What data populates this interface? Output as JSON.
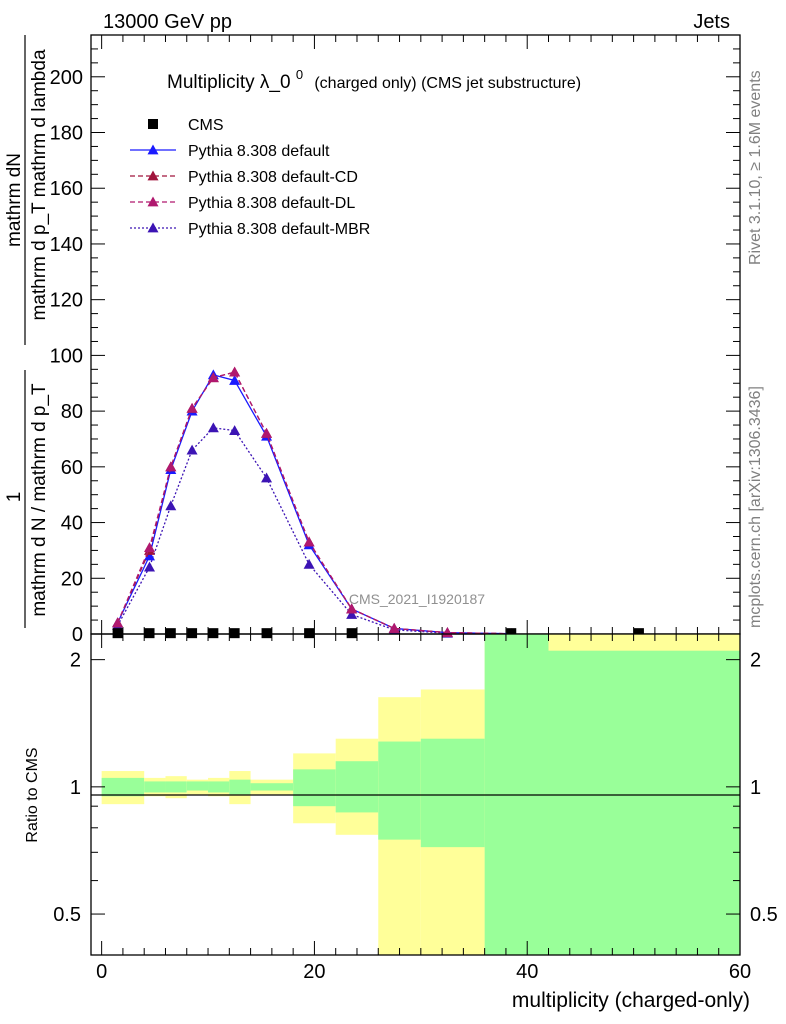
{
  "header": {
    "energy_label": "13000 GeV pp",
    "process_label": "Jets",
    "rivet_label": "Rivet 3.1.10, ≥ 1.6M events",
    "site_label": "mcplots.cern.ch [arXiv:1306.3436]",
    "analysis_id": "CMS_2021_I1920187"
  },
  "chart_data": [
    {
      "type": "line",
      "title": "Multiplicity λ_0",
      "title_superscript": "0",
      "title_suffix": "(charged only) (CMS jet substructure)",
      "ylabel_numerator": "1",
      "ylabel_numerator_2": "mathrm dN",
      "ylabel_denominator": "mathrm d N / mathrm d p_T",
      "ylabel_denominator_2": "mathrm d p_T mathrm d lambda",
      "ylim": [
        0,
        215
      ],
      "xlim": [
        -1,
        60
      ],
      "yticks": [
        "0",
        "20",
        "40",
        "60",
        "80",
        "100",
        "120",
        "140",
        "160",
        "180",
        "200"
      ],
      "legend_position": "top-left",
      "series": [
        {
          "name": "CMS",
          "marker": "square",
          "color": "#000000",
          "x": [
            1.5,
            4.5,
            6.5,
            8.5,
            10.5,
            12.5,
            15.5,
            19.5,
            23.5,
            38.5,
            50.5
          ],
          "values": [
            0.3,
            0.3,
            0.3,
            0.3,
            0.3,
            0.3,
            0.3,
            0.3,
            0.3,
            0.3,
            0.3
          ]
        },
        {
          "name": "Pythia 8.308 default",
          "marker": "triangle",
          "line": "solid",
          "color": "#1a1aff",
          "x": [
            1.5,
            4.5,
            6.5,
            8.5,
            10.5,
            12.5,
            15.5,
            19.5,
            23.5,
            27.5,
            32.5,
            38.5
          ],
          "values": [
            4,
            28,
            59,
            80,
            93,
            91,
            71,
            32,
            9,
            2,
            0.5,
            0.1
          ]
        },
        {
          "name": "Pythia 8.308 default-CD",
          "marker": "triangle",
          "line": "dashed",
          "color": "#a0143c",
          "x": [
            1.5,
            4.5,
            6.5,
            8.5,
            10.5,
            12.5,
            15.5,
            19.5,
            23.5,
            27.5,
            32.5,
            38.5
          ],
          "values": [
            4,
            30,
            60,
            81,
            92,
            94,
            72,
            33,
            9,
            2,
            0.5,
            0.1
          ]
        },
        {
          "name": "Pythia 8.308 default-DL",
          "marker": "triangle",
          "line": "dashed",
          "color": "#b0186e",
          "x": [
            1.5,
            4.5,
            6.5,
            8.5,
            10.5,
            12.5,
            15.5,
            19.5,
            23.5,
            27.5,
            32.5,
            38.5
          ],
          "values": [
            4,
            31,
            60,
            81,
            92,
            94,
            72,
            33,
            9,
            2,
            0.5,
            0.1
          ]
        },
        {
          "name": "Pythia 8.308 default-MBR",
          "marker": "triangle",
          "line": "dotted",
          "color": "#3c14b4",
          "x": [
            1.5,
            4.5,
            6.5,
            8.5,
            10.5,
            12.5,
            15.5,
            19.5,
            23.5,
            27.5,
            32.5,
            38.5
          ],
          "values": [
            3,
            24,
            46,
            66,
            74,
            73,
            56,
            25,
            7,
            1.5,
            0.3,
            0.05
          ]
        }
      ]
    },
    {
      "type": "area",
      "ylabel": "Ratio to CMS",
      "xlabel": "multiplicity (charged-only)",
      "log_y": true,
      "ylim": [
        0.4,
        2.3
      ],
      "xlim": [
        -1,
        60
      ],
      "xticks": [
        "0",
        "20",
        "40",
        "60"
      ],
      "yticks": [
        "0.5",
        "1",
        "2"
      ],
      "reference_line": 1,
      "bands": {
        "stat_color": "#99ff99",
        "total_color": "#ffff99",
        "bins": [
          {
            "x0": 0,
            "x1": 4,
            "stat": [
              0.95,
              1.05
            ],
            "total": [
              0.91,
              1.09
            ]
          },
          {
            "x0": 4,
            "x1": 6,
            "stat": [
              0.97,
              1.03
            ],
            "total": [
              0.95,
              1.05
            ]
          },
          {
            "x0": 6,
            "x1": 8,
            "stat": [
              0.97,
              1.03
            ],
            "total": [
              0.94,
              1.06
            ]
          },
          {
            "x0": 8,
            "x1": 10,
            "stat": [
              0.98,
              1.03
            ],
            "total": [
              0.96,
              1.04
            ]
          },
          {
            "x0": 10,
            "x1": 12,
            "stat": [
              0.97,
              1.03
            ],
            "total": [
              0.95,
              1.05
            ]
          },
          {
            "x0": 12,
            "x1": 14,
            "stat": [
              0.96,
              1.04
            ],
            "total": [
              0.91,
              1.09
            ]
          },
          {
            "x0": 14,
            "x1": 18,
            "stat": [
              0.98,
              1.02
            ],
            "total": [
              0.96,
              1.04
            ]
          },
          {
            "x0": 18,
            "x1": 22,
            "stat": [
              0.9,
              1.1
            ],
            "total": [
              0.82,
              1.2
            ]
          },
          {
            "x0": 22,
            "x1": 26,
            "stat": [
              0.87,
              1.15
            ],
            "total": [
              0.77,
              1.3
            ]
          },
          {
            "x0": 26,
            "x1": 30,
            "stat": [
              0.75,
              1.28
            ],
            "total": [
              0.38,
              1.63
            ]
          },
          {
            "x0": 30,
            "x1": 36,
            "stat": [
              0.72,
              1.3
            ],
            "total": [
              0.3,
              1.7
            ]
          },
          {
            "x0": 36,
            "x1": 42,
            "stat": [
              0.3,
              3.0
            ],
            "total": [
              0.3,
              3.0
            ]
          },
          {
            "x0": 42,
            "x1": 60,
            "stat": [
              0.3,
              2.1
            ],
            "total": [
              0.3,
              3.0
            ]
          }
        ]
      }
    }
  ]
}
